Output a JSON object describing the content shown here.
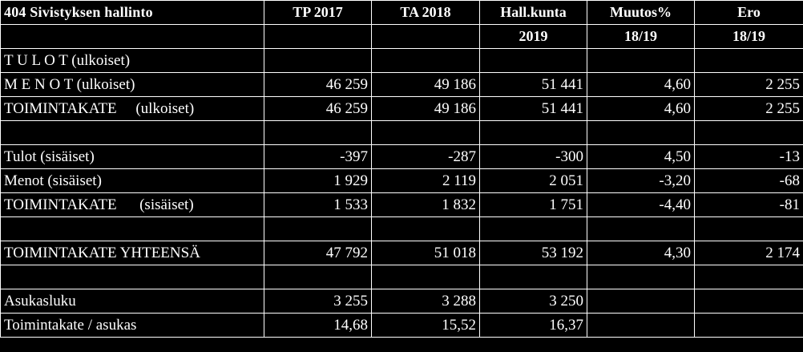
{
  "table": {
    "header1": [
      "404 Sivistyksen hallinto",
      "TP 2017",
      "TA 2018",
      "Hall.kunta",
      "Muutos%",
      "Ero"
    ],
    "header2": [
      "",
      "",
      "",
      "2019",
      "18/19",
      "18/19"
    ],
    "rows": [
      [
        "T U L O T (ulkoiset)",
        "",
        "",
        "",
        "",
        ""
      ],
      [
        "M E N O T (ulkoiset)",
        "46 259",
        "49 186",
        "51 441",
        "4,60",
        "2 255"
      ],
      [
        "TOIMINTAKATE     (ulkoiset)",
        "46 259",
        "49 186",
        "51 441",
        "4,60",
        "2 255"
      ],
      [
        "",
        "",
        "",
        "",
        "",
        ""
      ],
      [
        "Tulot (sisäiset)",
        "-397",
        "-287",
        "-300",
        "4,50",
        "-13"
      ],
      [
        "Menot (sisäiset)",
        "1 929",
        "2 119",
        "2 051",
        "-3,20",
        "-68"
      ],
      [
        "TOIMINTAKATE      (sisäiset)",
        "1 533",
        "1 832",
        "1 751",
        "-4,40",
        "-81"
      ],
      [
        "",
        "",
        "",
        "",
        "",
        ""
      ],
      [
        "TOIMINTAKATE YHTEENSÄ",
        "47 792",
        "51 018",
        "53 192",
        "4,30",
        "2 174"
      ],
      [
        "",
        "",
        "",
        "",
        "",
        ""
      ],
      [
        "Asukasluku",
        "3 255",
        "3 288",
        "3 250",
        "",
        ""
      ],
      [
        "Toimintakate / asukas",
        "14,68",
        "15,52",
        "16,37",
        "",
        ""
      ]
    ]
  }
}
